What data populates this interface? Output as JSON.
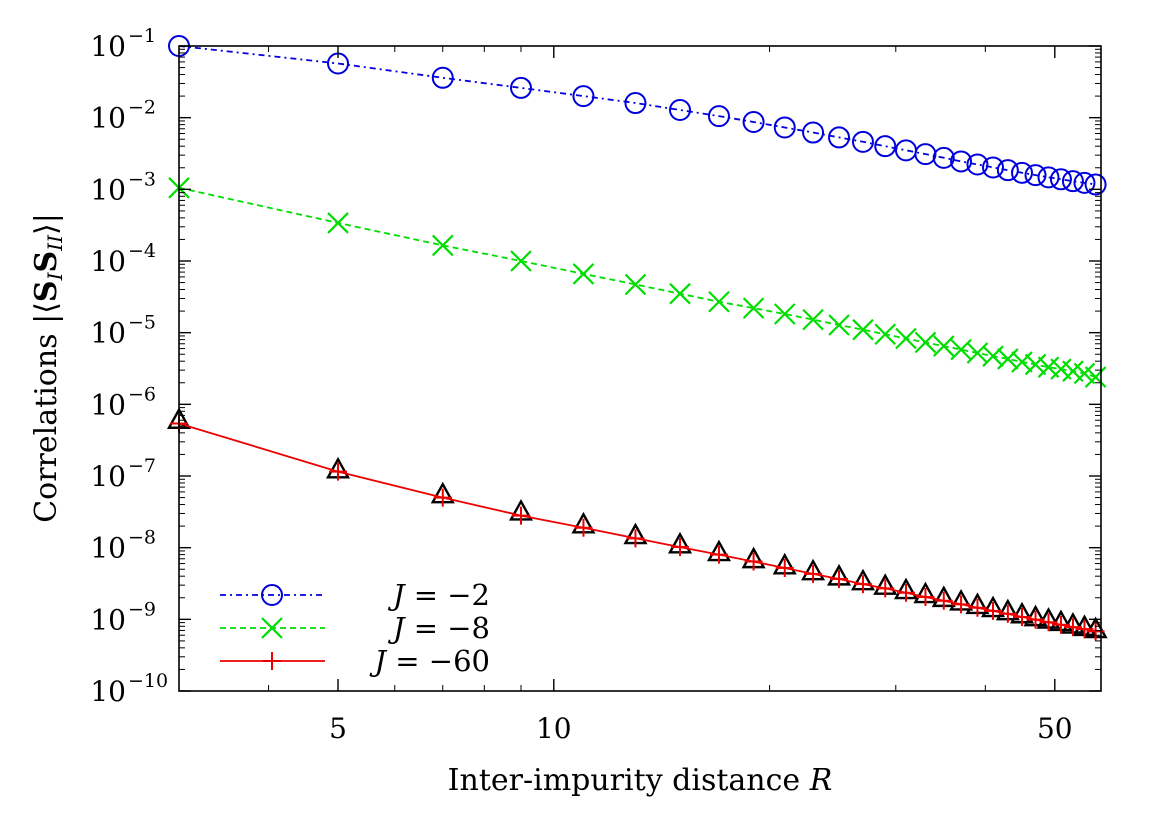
{
  "chart_data": {
    "type": "scatter",
    "x_scale": "log",
    "y_scale": "log",
    "xlim": [
      3,
      58
    ],
    "ylim": [
      1e-10,
      0.1
    ],
    "x_ticks": [
      {
        "value": 5,
        "label": "5"
      },
      {
        "value": 10,
        "label": "10"
      },
      {
        "value": 50,
        "label": "50"
      }
    ],
    "y_ticks": [
      {
        "value": 0.1,
        "base": "10",
        "exp": "−1"
      },
      {
        "value": 0.01,
        "base": "10",
        "exp": "−2"
      },
      {
        "value": 0.001,
        "base": "10",
        "exp": "−3"
      },
      {
        "value": 0.0001,
        "base": "10",
        "exp": "−4"
      },
      {
        "value": 1e-05,
        "base": "10",
        "exp": "−5"
      },
      {
        "value": 1e-06,
        "base": "10",
        "exp": "−6"
      },
      {
        "value": 1e-07,
        "base": "10",
        "exp": "−7"
      },
      {
        "value": 1e-08,
        "base": "10",
        "exp": "−8"
      },
      {
        "value": 1e-09,
        "base": "10",
        "exp": "−9"
      },
      {
        "value": 1e-10,
        "base": "10",
        "exp": "−10"
      }
    ],
    "xlabel": {
      "text": "Inter-impurity distance ",
      "var": "R"
    },
    "ylabel": {
      "prefix": "Correlations |⟨",
      "s1": "S",
      "sub1": "I",
      "s2": "S",
      "sub2": "II",
      "suffix": "⟩|"
    },
    "grid": false,
    "legend_position": "bottom-left",
    "x": [
      3,
      5,
      7,
      9,
      11,
      13,
      15,
      17,
      19,
      21,
      23,
      25,
      27,
      29,
      31,
      33,
      35,
      37,
      39,
      41,
      43,
      45,
      47,
      49,
      51,
      53,
      55,
      57
    ],
    "series": [
      {
        "name": "J = −2",
        "name_var": "J",
        "name_rest": " = −2",
        "color": "#0000dd",
        "marker": "circle",
        "line": "dash-dot",
        "values": [
          0.1,
          0.057,
          0.036,
          0.026,
          0.02,
          0.016,
          0.0128,
          0.0105,
          0.0087,
          0.0073,
          0.0062,
          0.0053,
          0.0046,
          0.004,
          0.0035,
          0.0031,
          0.00275,
          0.00245,
          0.00222,
          0.00202,
          0.00185,
          0.0017,
          0.00158,
          0.00147,
          0.00138,
          0.0013,
          0.00123,
          0.00117
        ]
      },
      {
        "name": "J = −8",
        "name_var": "J",
        "name_rest": " = −8",
        "color": "#00dd00",
        "marker": "x",
        "line": "dashed",
        "values": [
          0.00105,
          0.00034,
          0.000165,
          0.0001,
          6.6e-05,
          4.7e-05,
          3.5e-05,
          2.7e-05,
          2.2e-05,
          1.82e-05,
          1.52e-05,
          1.28e-05,
          1.1e-05,
          9.5e-06,
          8.3e-06,
          7.3e-06,
          6.5e-06,
          5.8e-06,
          5.2e-06,
          4.7e-06,
          4.3e-06,
          3.9e-06,
          3.6e-06,
          3.3e-06,
          3.1e-06,
          2.9e-06,
          2.7e-06,
          2.4e-06
        ]
      },
      {
        "name": "J = −60",
        "name_var": "J",
        "name_rest": " = −60",
        "color": "#ee0000",
        "marker": "plus",
        "line": "solid",
        "values": [
          5.4e-07,
          1.15e-07,
          5e-08,
          2.8e-08,
          1.9e-08,
          1.35e-08,
          1.02e-08,
          8e-09,
          6.4e-09,
          5.2e-09,
          4.3e-09,
          3.65e-09,
          3.1e-09,
          2.7e-09,
          2.35e-09,
          2.05e-09,
          1.82e-09,
          1.62e-09,
          1.45e-09,
          1.31e-09,
          1.19e-09,
          1.08e-09,
          9.9e-10,
          9.1e-10,
          8.4e-10,
          7.8e-10,
          7.3e-10,
          6.8e-10
        ]
      },
      {
        "name": "",
        "color": "#000000",
        "marker": "triangle",
        "line": "none",
        "values": [
          5.9e-07,
          1.2e-07,
          5.4e-08,
          3.1e-08,
          2.05e-08,
          1.45e-08,
          1.08e-08,
          8.4e-09,
          6.7e-09,
          5.5e-09,
          4.55e-09,
          3.85e-09,
          3.3e-09,
          2.85e-09,
          2.48e-09,
          2.18e-09,
          1.93e-09,
          1.72e-09,
          1.54e-09,
          1.39e-09,
          1.26e-09,
          1.14e-09,
          1.04e-09,
          9.6e-10,
          8.9e-10,
          8.2e-10,
          7.6e-10,
          7.1e-10
        ]
      }
    ]
  }
}
